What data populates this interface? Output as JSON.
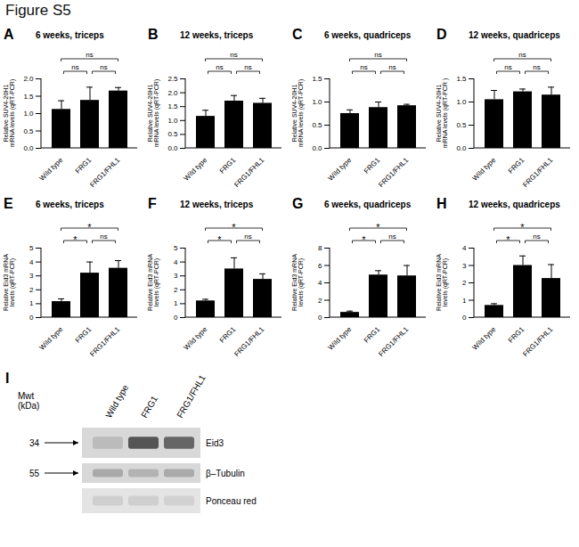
{
  "title": "Figure S5",
  "chart_data": [
    {
      "type": "bar",
      "panel": "A",
      "title": "6 weeks, triceps",
      "y_label": "Relative SUV4-20H1 mRNA levels (qRT-PCR)",
      "color": "#000000",
      "categories": [
        "Wild type",
        "FRG1",
        "FRG1/FHL1"
      ],
      "values": [
        1.12,
        1.38,
        1.65
      ],
      "errors": [
        0.25,
        0.38,
        0.1
      ],
      "ylim": [
        0,
        2
      ],
      "yticks": [
        {
          "value": 0,
          "label": "0.0"
        },
        {
          "value": 0.5,
          "label": "0.5"
        },
        {
          "value": 1,
          "label": "1.0"
        },
        {
          "value": 1.5,
          "label": "1.5"
        },
        {
          "value": 2,
          "label": "2.0"
        }
      ],
      "annotations": [
        {
          "from": "Wild type",
          "to": "FRG1",
          "text": "ns"
        },
        {
          "from": "FRG1",
          "to": "FRG1/FHL1",
          "text": "ns"
        },
        {
          "from": "Wild type",
          "to": "FRG1/FHL1",
          "text": "ns"
        }
      ]
    },
    {
      "type": "bar",
      "panel": "B",
      "title": "12 weeks, triceps",
      "y_label": "Relative SUV4-20H1 mRNA levels (qRT-PCR)",
      "color": "#000000",
      "categories": [
        "Wild type",
        "FRG1",
        "FRG1/FHL1"
      ],
      "values": [
        1.15,
        1.7,
        1.62
      ],
      "errors": [
        0.22,
        0.2,
        0.18
      ],
      "ylim": [
        0,
        2.5
      ],
      "yticks": [
        {
          "value": 0,
          "label": "0.0"
        },
        {
          "value": 0.5,
          "label": "0.5"
        },
        {
          "value": 1,
          "label": "1.0"
        },
        {
          "value": 1.5,
          "label": "1.5"
        },
        {
          "value": 2,
          "label": "2.0"
        },
        {
          "value": 2.5,
          "label": "2.5"
        }
      ],
      "annotations": [
        {
          "from": "Wild type",
          "to": "FRG1",
          "text": "ns"
        },
        {
          "from": "FRG1",
          "to": "FRG1/FHL1",
          "text": "ns"
        },
        {
          "from": "Wild type",
          "to": "FRG1/FHL1",
          "text": "ns"
        }
      ]
    },
    {
      "type": "bar",
      "panel": "C",
      "title": "6 weeks, quadriceps",
      "y_label": "Relative SUV4-20H1 mRNA levels (qRT-PCR)",
      "color": "#000000",
      "categories": [
        "Wild type",
        "FRG1",
        "FRG1/FHL1"
      ],
      "values": [
        0.75,
        0.88,
        0.92
      ],
      "errors": [
        0.08,
        0.12,
        0.03
      ],
      "ylim": [
        0,
        1.5
      ],
      "yticks": [
        {
          "value": 0,
          "label": "0.0"
        },
        {
          "value": 0.5,
          "label": "0.5"
        },
        {
          "value": 1,
          "label": "1.0"
        },
        {
          "value": 1.5,
          "label": "1.5"
        }
      ],
      "annotations": [
        {
          "from": "Wild type",
          "to": "FRG1",
          "text": "ns"
        },
        {
          "from": "FRG1",
          "to": "FRG1/FHL1",
          "text": "ns"
        },
        {
          "from": "Wild type",
          "to": "FRG1/FHL1",
          "text": "ns"
        }
      ]
    },
    {
      "type": "bar",
      "panel": "D",
      "title": "12 weeks, quadriceps",
      "y_label": "Relative SUV4-20H1 mRNA levels (qRT-PCR )",
      "color": "#000000",
      "categories": [
        "Wild type",
        "FRG1",
        "FRG1/FHL1"
      ],
      "values": [
        1.05,
        1.22,
        1.15
      ],
      "errors": [
        0.2,
        0.06,
        0.17
      ],
      "ylim": [
        0,
        1.5
      ],
      "yticks": [
        {
          "value": 0,
          "label": "0.0"
        },
        {
          "value": 0.5,
          "label": "0.5"
        },
        {
          "value": 1,
          "label": "1.0"
        },
        {
          "value": 1.5,
          "label": "1.5"
        }
      ],
      "annotations": [
        {
          "from": "Wild type",
          "to": "FRG1",
          "text": "ns"
        },
        {
          "from": "FRG1",
          "to": "FRG1/FHL1",
          "text": "ns"
        },
        {
          "from": "Wild type",
          "to": "FRG1/FHL1",
          "text": "ns"
        }
      ]
    },
    {
      "type": "bar",
      "panel": "E",
      "title": "6 weeks, triceps",
      "y_label": "Relative Eid3 mRNA levels (qRT-PCR)",
      "color": "#000000",
      "categories": [
        "Wild type",
        "FRG1",
        "FRG1/FHL1"
      ],
      "values": [
        1.15,
        3.2,
        3.55
      ],
      "errors": [
        0.2,
        0.8,
        0.55
      ],
      "ylim": [
        0,
        5
      ],
      "yticks": [
        0,
        1,
        2,
        3,
        4,
        5
      ],
      "annotations": [
        {
          "from": "Wild type",
          "to": "FRG1",
          "text": "*"
        },
        {
          "from": "FRG1",
          "to": "FRG1/FHL1",
          "text": "ns"
        },
        {
          "from": "Wild type",
          "to": "FRG1/FHL1",
          "text": "*"
        }
      ]
    },
    {
      "type": "bar",
      "panel": "F",
      "title": "12 weeks, triceps",
      "y_label": "Relative Eid3 mRNA levels (qRT-PCR)",
      "color": "#000000",
      "categories": [
        "Wild type",
        "FRG1",
        "FRG1/FHL1"
      ],
      "values": [
        1.2,
        3.5,
        2.75
      ],
      "errors": [
        0.12,
        0.8,
        0.4
      ],
      "ylim": [
        0,
        5
      ],
      "yticks": [
        0,
        1,
        2,
        3,
        4,
        5
      ],
      "annotations": [
        {
          "from": "Wild type",
          "to": "FRG1",
          "text": "*"
        },
        {
          "from": "FRG1",
          "to": "FRG1/FHL1",
          "text": "ns"
        },
        {
          "from": "Wild type",
          "to": "FRG1/FHL1",
          "text": "*"
        }
      ]
    },
    {
      "type": "bar",
      "panel": "G",
      "title": "6 weeks, quadriceps",
      "y_label": "Relative Eid3 mRNA levels (qRT-PCR)",
      "color": "#000000",
      "categories": [
        "Wild type",
        "FRG1",
        "FRG1/FHL1"
      ],
      "values": [
        0.6,
        4.9,
        4.8
      ],
      "errors": [
        0.15,
        0.5,
        1.2
      ],
      "ylim": [
        0,
        8
      ],
      "yticks": [
        0,
        2,
        4,
        6,
        8
      ],
      "annotations": [
        {
          "from": "Wild type",
          "to": "FRG1",
          "text": "*"
        },
        {
          "from": "FRG1",
          "to": "FRG1/FHL1",
          "text": "ns"
        },
        {
          "from": "Wild type",
          "to": "FRG1/FHL1",
          "text": "*"
        }
      ]
    },
    {
      "type": "bar",
      "panel": "H",
      "title": "12 weeks, quadriceps",
      "y_label": "Relative Eid3 mRNA levels (qRT-PCR)",
      "color": "#000000",
      "categories": [
        "Wild type",
        "FRG1",
        "FRG1/FHL1"
      ],
      "values": [
        0.7,
        3.0,
        2.25
      ],
      "errors": [
        0.1,
        0.55,
        0.8
      ],
      "ylim": [
        0,
        4
      ],
      "yticks": [
        0,
        1,
        2,
        3,
        4
      ],
      "annotations": [
        {
          "from": "Wild type",
          "to": "FRG1",
          "text": "*"
        },
        {
          "from": "FRG1",
          "to": "FRG1/FHL1",
          "text": "ns"
        },
        {
          "from": "Wild type",
          "to": "FRG1/FHL1",
          "text": "*"
        }
      ]
    }
  ],
  "blot": {
    "panel": "I",
    "weight_label": "Mwt (kDa)",
    "lanes": [
      "Wild type",
      "FRG1",
      "FRG1/FHL1"
    ],
    "rows": [
      {
        "label": "Eid3",
        "marker": 34
      },
      {
        "label": "β–Tubulin",
        "marker": 55
      },
      {
        "label": "Ponceau red",
        "marker": null
      }
    ]
  }
}
